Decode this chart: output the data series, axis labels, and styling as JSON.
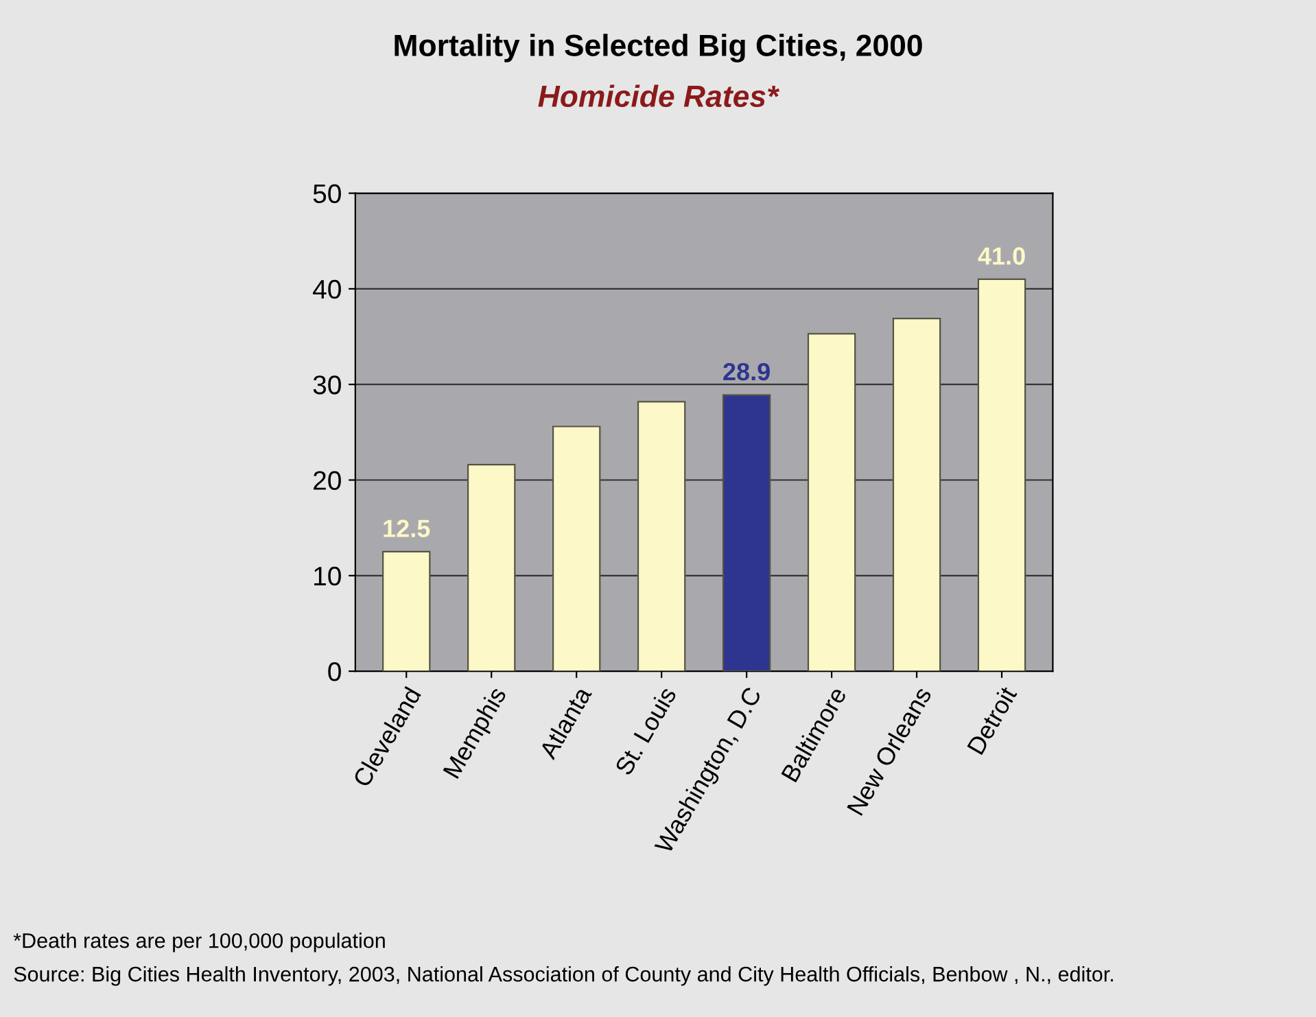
{
  "chart_data": {
    "type": "bar",
    "title": "Mortality in Selected Big Cities, 2000",
    "subtitle": "Homicide Rates*",
    "categories": [
      "Cleveland",
      "Memphis",
      "Atlanta",
      "St. Louis",
      "Washington, D.C",
      "Baltimore",
      "New Orleans",
      "Detroit"
    ],
    "values": [
      12.5,
      21.6,
      25.6,
      28.2,
      28.9,
      35.3,
      36.9,
      41.0
    ],
    "colors": [
      "#fdf8c8",
      "#fdf8c8",
      "#fdf8c8",
      "#fdf8c8",
      "#2e3590",
      "#fdf8c8",
      "#fdf8c8",
      "#fdf8c8"
    ],
    "value_labels": [
      "12.5",
      null,
      null,
      null,
      "28.9",
      null,
      null,
      "41.0"
    ],
    "ylim": [
      0,
      50
    ],
    "yticks": [
      0,
      10,
      20,
      30,
      40,
      50
    ],
    "grid": "y",
    "annotations": [
      "*Death rates are per 100,000 population",
      "Source: Big Cities Health Inventory, 2003, National Association of County and City Health Officials, Benbow , N., editor."
    ]
  }
}
